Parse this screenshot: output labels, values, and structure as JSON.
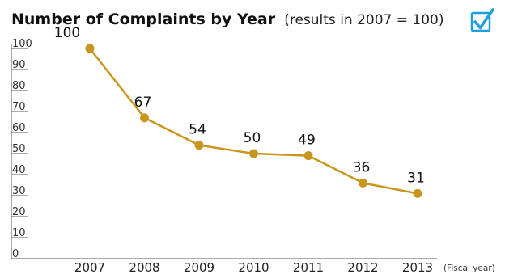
{
  "chart_data": {
    "type": "line",
    "title": "Number of Complaints by Year",
    "subtitle": "(results in 2007 = 100)",
    "xlabel": "(Fiscal year)",
    "ylabel": "",
    "categories": [
      "2007",
      "2008",
      "2009",
      "2010",
      "2011",
      "2012",
      "2013"
    ],
    "series": [
      {
        "values": [
          100,
          67,
          54,
          50,
          49,
          36,
          31
        ]
      }
    ],
    "data_labels": [
      "100",
      "67",
      "54",
      "50",
      "49",
      "36",
      "31"
    ],
    "y_ticks": [
      "0",
      "10",
      "20",
      "30",
      "40",
      "50",
      "60",
      "70",
      "80",
      "90",
      "100"
    ],
    "ylim": [
      0,
      100
    ],
    "grid": false,
    "legend": "none",
    "colors": {
      "line": "#c8961e",
      "marker": "#c8961e",
      "axis": "#555555",
      "checkbox": "#1ca0e0"
    },
    "icons": {
      "checkbox": "checkbox-checked-icon"
    }
  }
}
